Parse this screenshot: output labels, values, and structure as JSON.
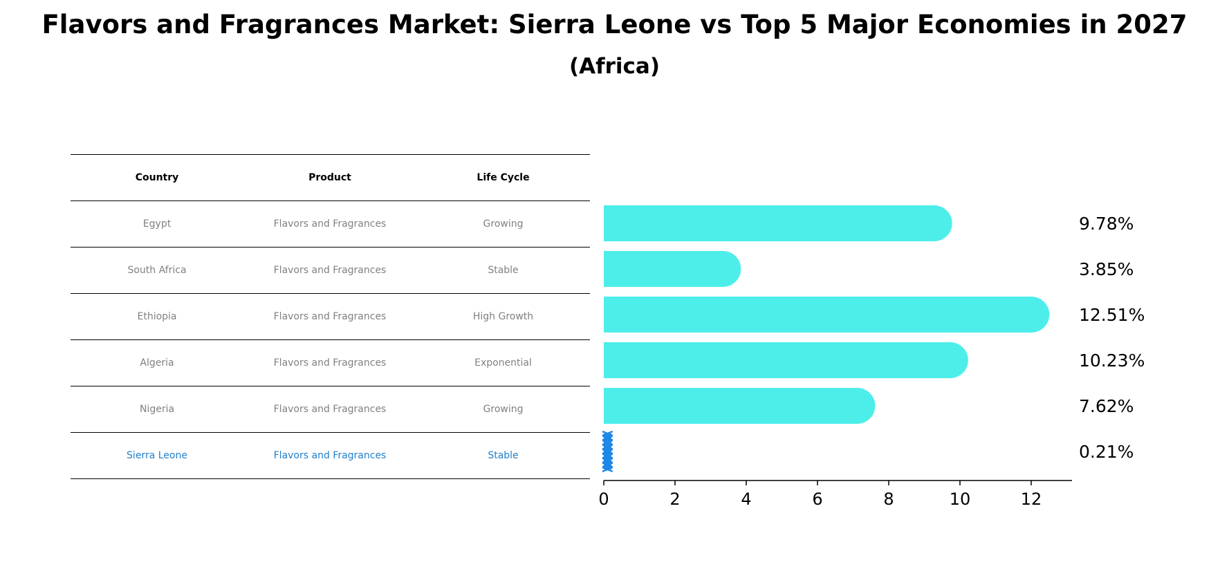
{
  "title": "Flavors and Fragrances Market: Sierra Leone vs Top 5 Major Economies in 2027",
  "subtitle": "(Africa)",
  "table": {
    "headers": [
      "Country",
      "Product",
      "Life Cycle"
    ],
    "rows": [
      {
        "country": "Egypt",
        "product": "Flavors and Fragrances",
        "life_cycle": "Growing"
      },
      {
        "country": "South Africa",
        "product": "Flavors and Fragrances",
        "life_cycle": "Stable"
      },
      {
        "country": "Ethiopia",
        "product": "Flavors and Fragrances",
        "life_cycle": "High Growth"
      },
      {
        "country": "Algeria",
        "product": "Flavors and Fragrances",
        "life_cycle": "Exponential"
      },
      {
        "country": "Nigeria",
        "product": "Flavors and Fragrances",
        "life_cycle": "Growing"
      },
      {
        "country": "Sierra Leone",
        "product": "Flavors and Fragrances",
        "life_cycle": "Stable"
      }
    ]
  },
  "colors": {
    "bar": "#4deeea",
    "highlight_bar": "#1e88e5",
    "highlight_text": "#1f7fcc",
    "muted_text": "#808080"
  },
  "chart_data": {
    "type": "bar",
    "orientation": "horizontal",
    "categories": [
      "Egypt",
      "South Africa",
      "Ethiopia",
      "Algeria",
      "Nigeria",
      "Sierra Leone"
    ],
    "values": [
      9.78,
      3.85,
      12.51,
      10.23,
      7.62,
      0.21
    ],
    "value_labels": [
      "9.78%",
      "3.85%",
      "12.51%",
      "10.23%",
      "7.62%",
      "0.21%"
    ],
    "highlight": "Sierra Leone",
    "x_ticks": [
      0,
      2,
      4,
      6,
      8,
      10,
      12
    ],
    "xlim": [
      0,
      13.1
    ],
    "grid": false
  }
}
